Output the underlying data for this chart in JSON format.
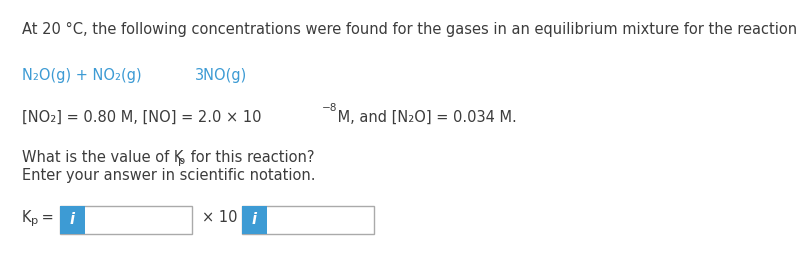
{
  "bg_color": "#ffffff",
  "text_color": "#3c3c3c",
  "blue_color": "#3d9bd4",
  "line1": "At 20 °C, the following concentrations were found for the gases in an equilibrium mixture for the reaction",
  "reaction_left": "N₂O(g) + NO₂(g)",
  "reaction_right": "3NO(g)",
  "conc_main": "[NO₂] = 0.80 M, [NO] = 2.0 × 10",
  "conc_exp": "−8",
  "conc_end": " M, and [N₂O] = 0.034 M.",
  "q1_pre": "What is the value of K",
  "q1_sub": "p",
  "q1_end": " for this reaction?",
  "q2": "Enter your answer in scientific notation.",
  "kp_k": "K",
  "kp_sub": "p",
  "kp_eq": " =",
  "times10": "× 10",
  "icon_letter": "i",
  "font_size": 10.5,
  "border_color": "#aaaaaa",
  "icon_color": "#3d9bd4"
}
